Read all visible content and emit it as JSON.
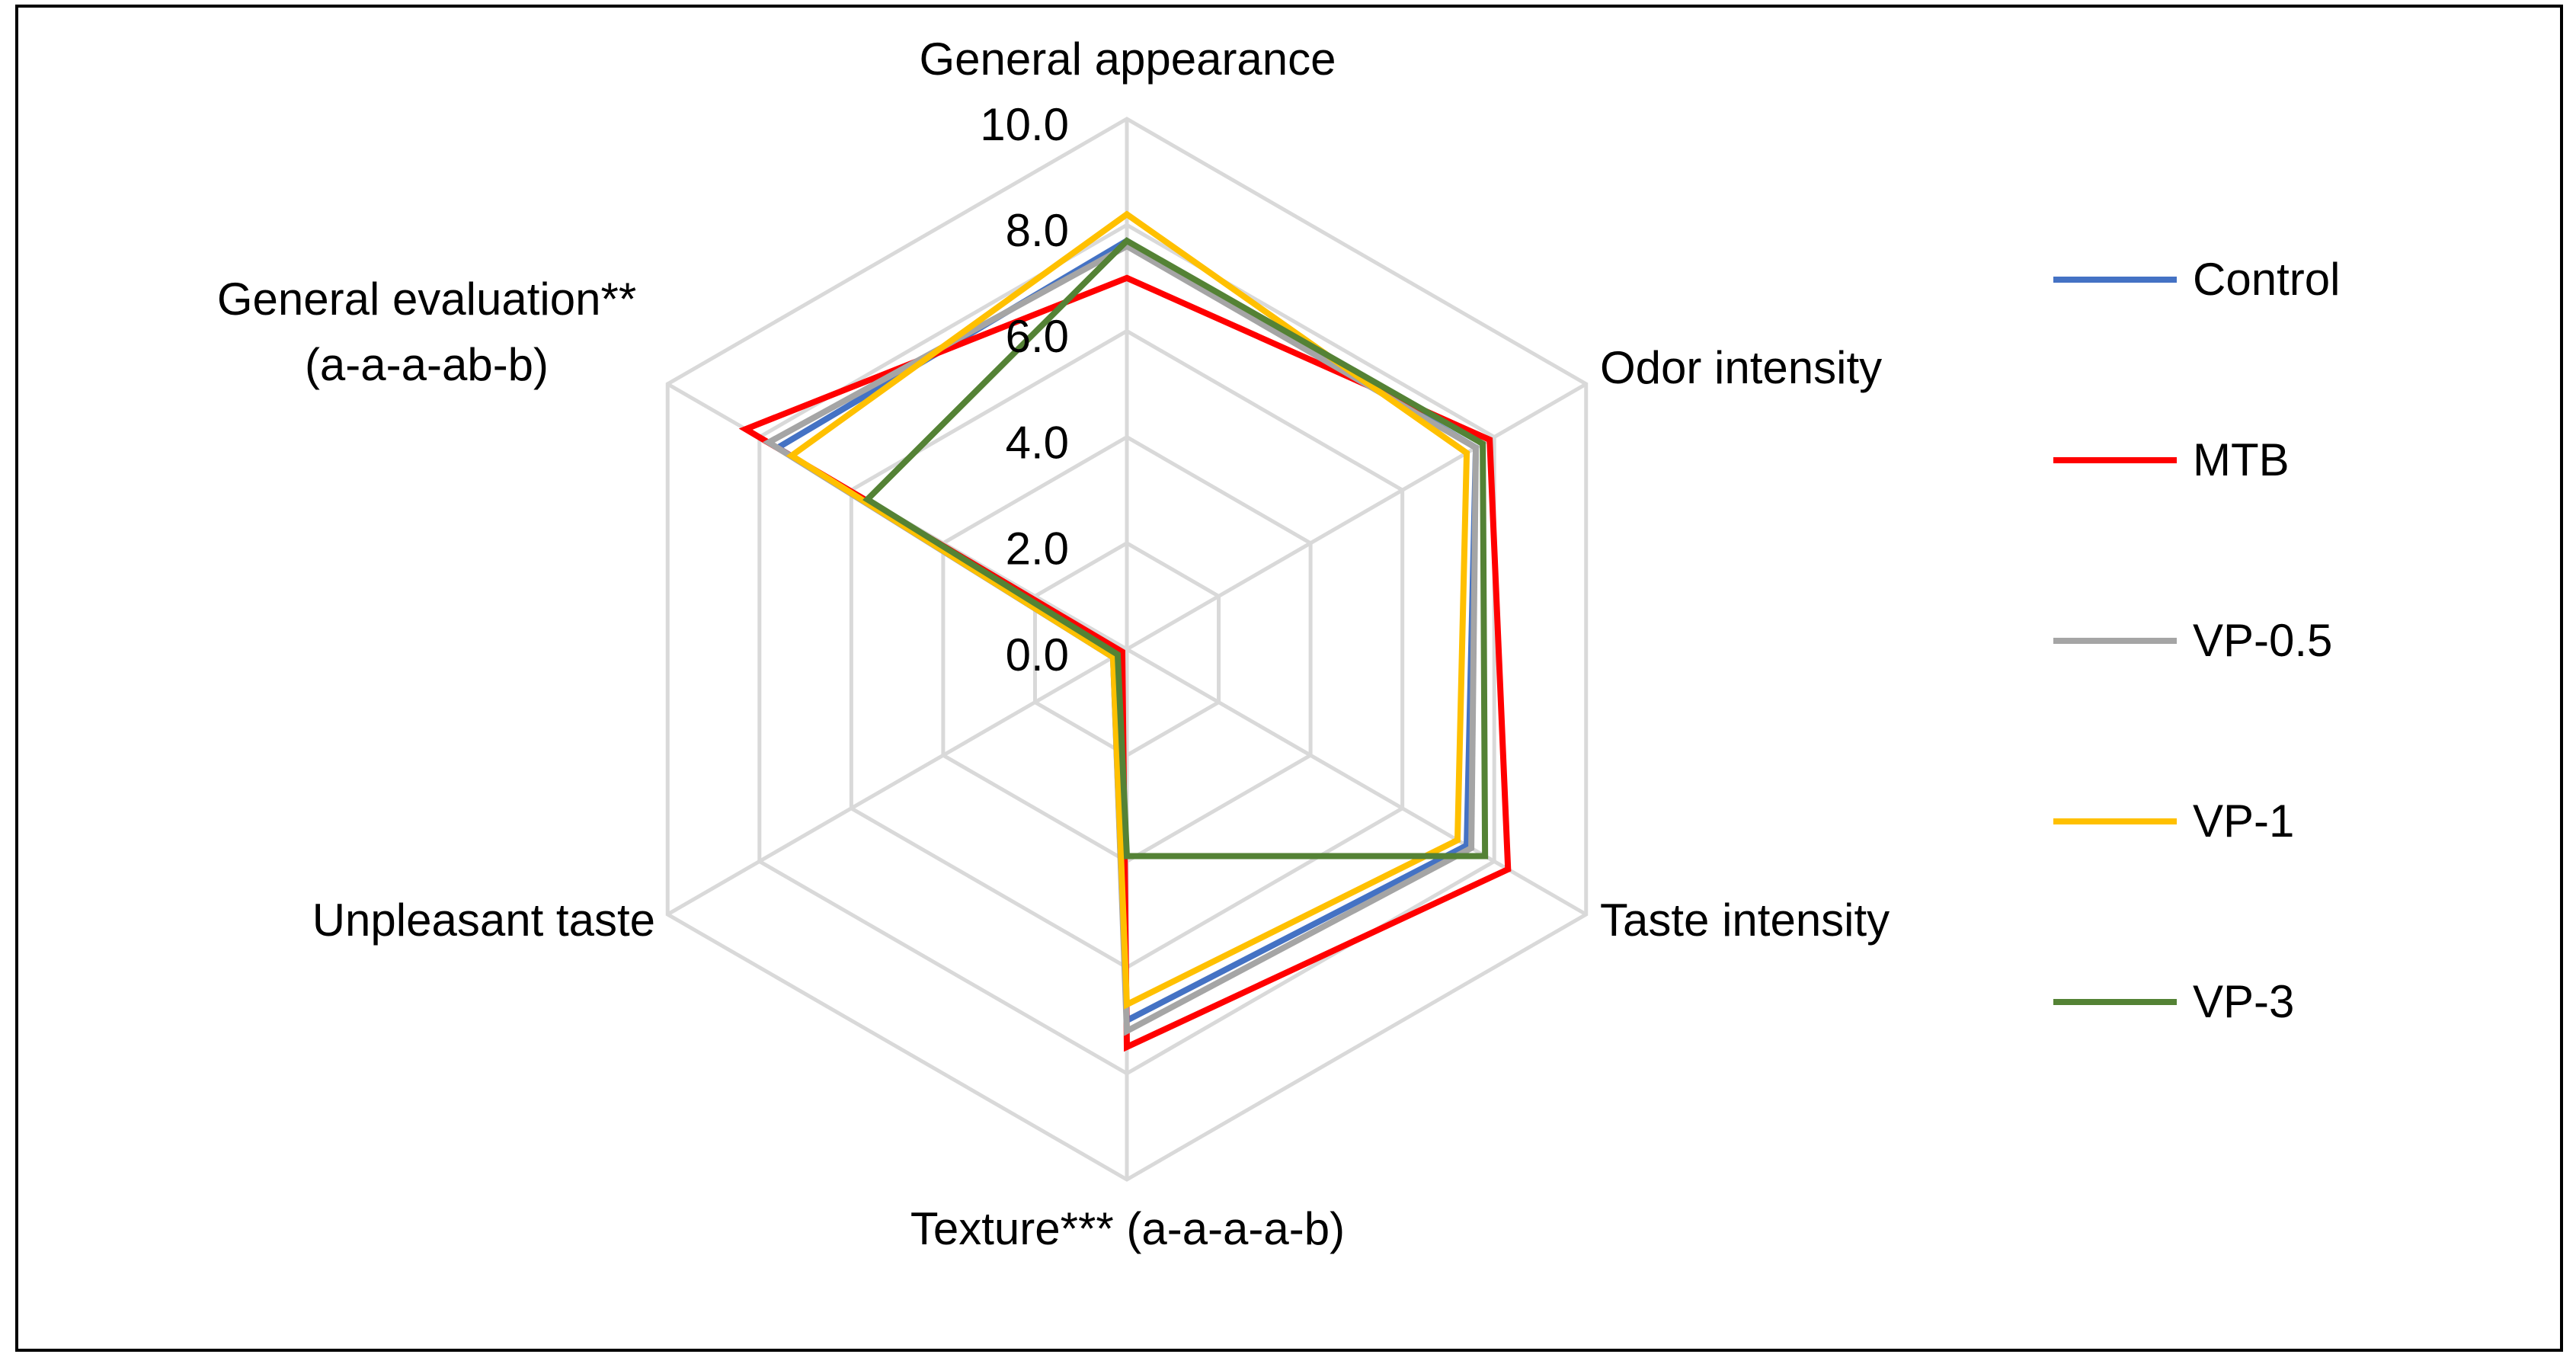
{
  "chart_data": {
    "type": "radar",
    "categories": [
      "General appearance",
      "Odor intensity",
      "Taste intensity",
      "Texture*** (a-a-a-a-b)",
      "Unpleasant taste",
      "General evaluation**(a-a-a-ab-b)"
    ],
    "ylim": [
      0,
      10
    ],
    "yticks": [
      {
        "value": 0,
        "label": "0.0"
      },
      {
        "value": 2,
        "label": "2.0"
      },
      {
        "value": 4,
        "label": "4.0"
      },
      {
        "value": 6,
        "label": "6.0"
      },
      {
        "value": 8,
        "label": "8.0"
      },
      {
        "value": 10,
        "label": "10.0"
      }
    ],
    "grid": true,
    "legend": "right",
    "series": [
      {
        "name": "Control",
        "color": "#4472c4",
        "values": [
          7.7,
          7.6,
          7.4,
          7.0,
          0.3,
          7.6
        ]
      },
      {
        "name": "MTB",
        "color": "#ff0000",
        "values": [
          7.0,
          7.9,
          8.3,
          7.5,
          0.1,
          8.3
        ]
      },
      {
        "name": "VP-0.5",
        "color": "#a5a5a5",
        "values": [
          7.6,
          7.6,
          7.5,
          7.2,
          0.3,
          7.8
        ]
      },
      {
        "name": "VP-1",
        "color": "#ffc000",
        "values": [
          8.2,
          7.4,
          7.2,
          6.7,
          0.3,
          7.3
        ]
      },
      {
        "name": "VP-3",
        "color": "#548235",
        "values": [
          7.7,
          7.75,
          7.8,
          3.9,
          0.2,
          5.65
        ]
      }
    ]
  }
}
